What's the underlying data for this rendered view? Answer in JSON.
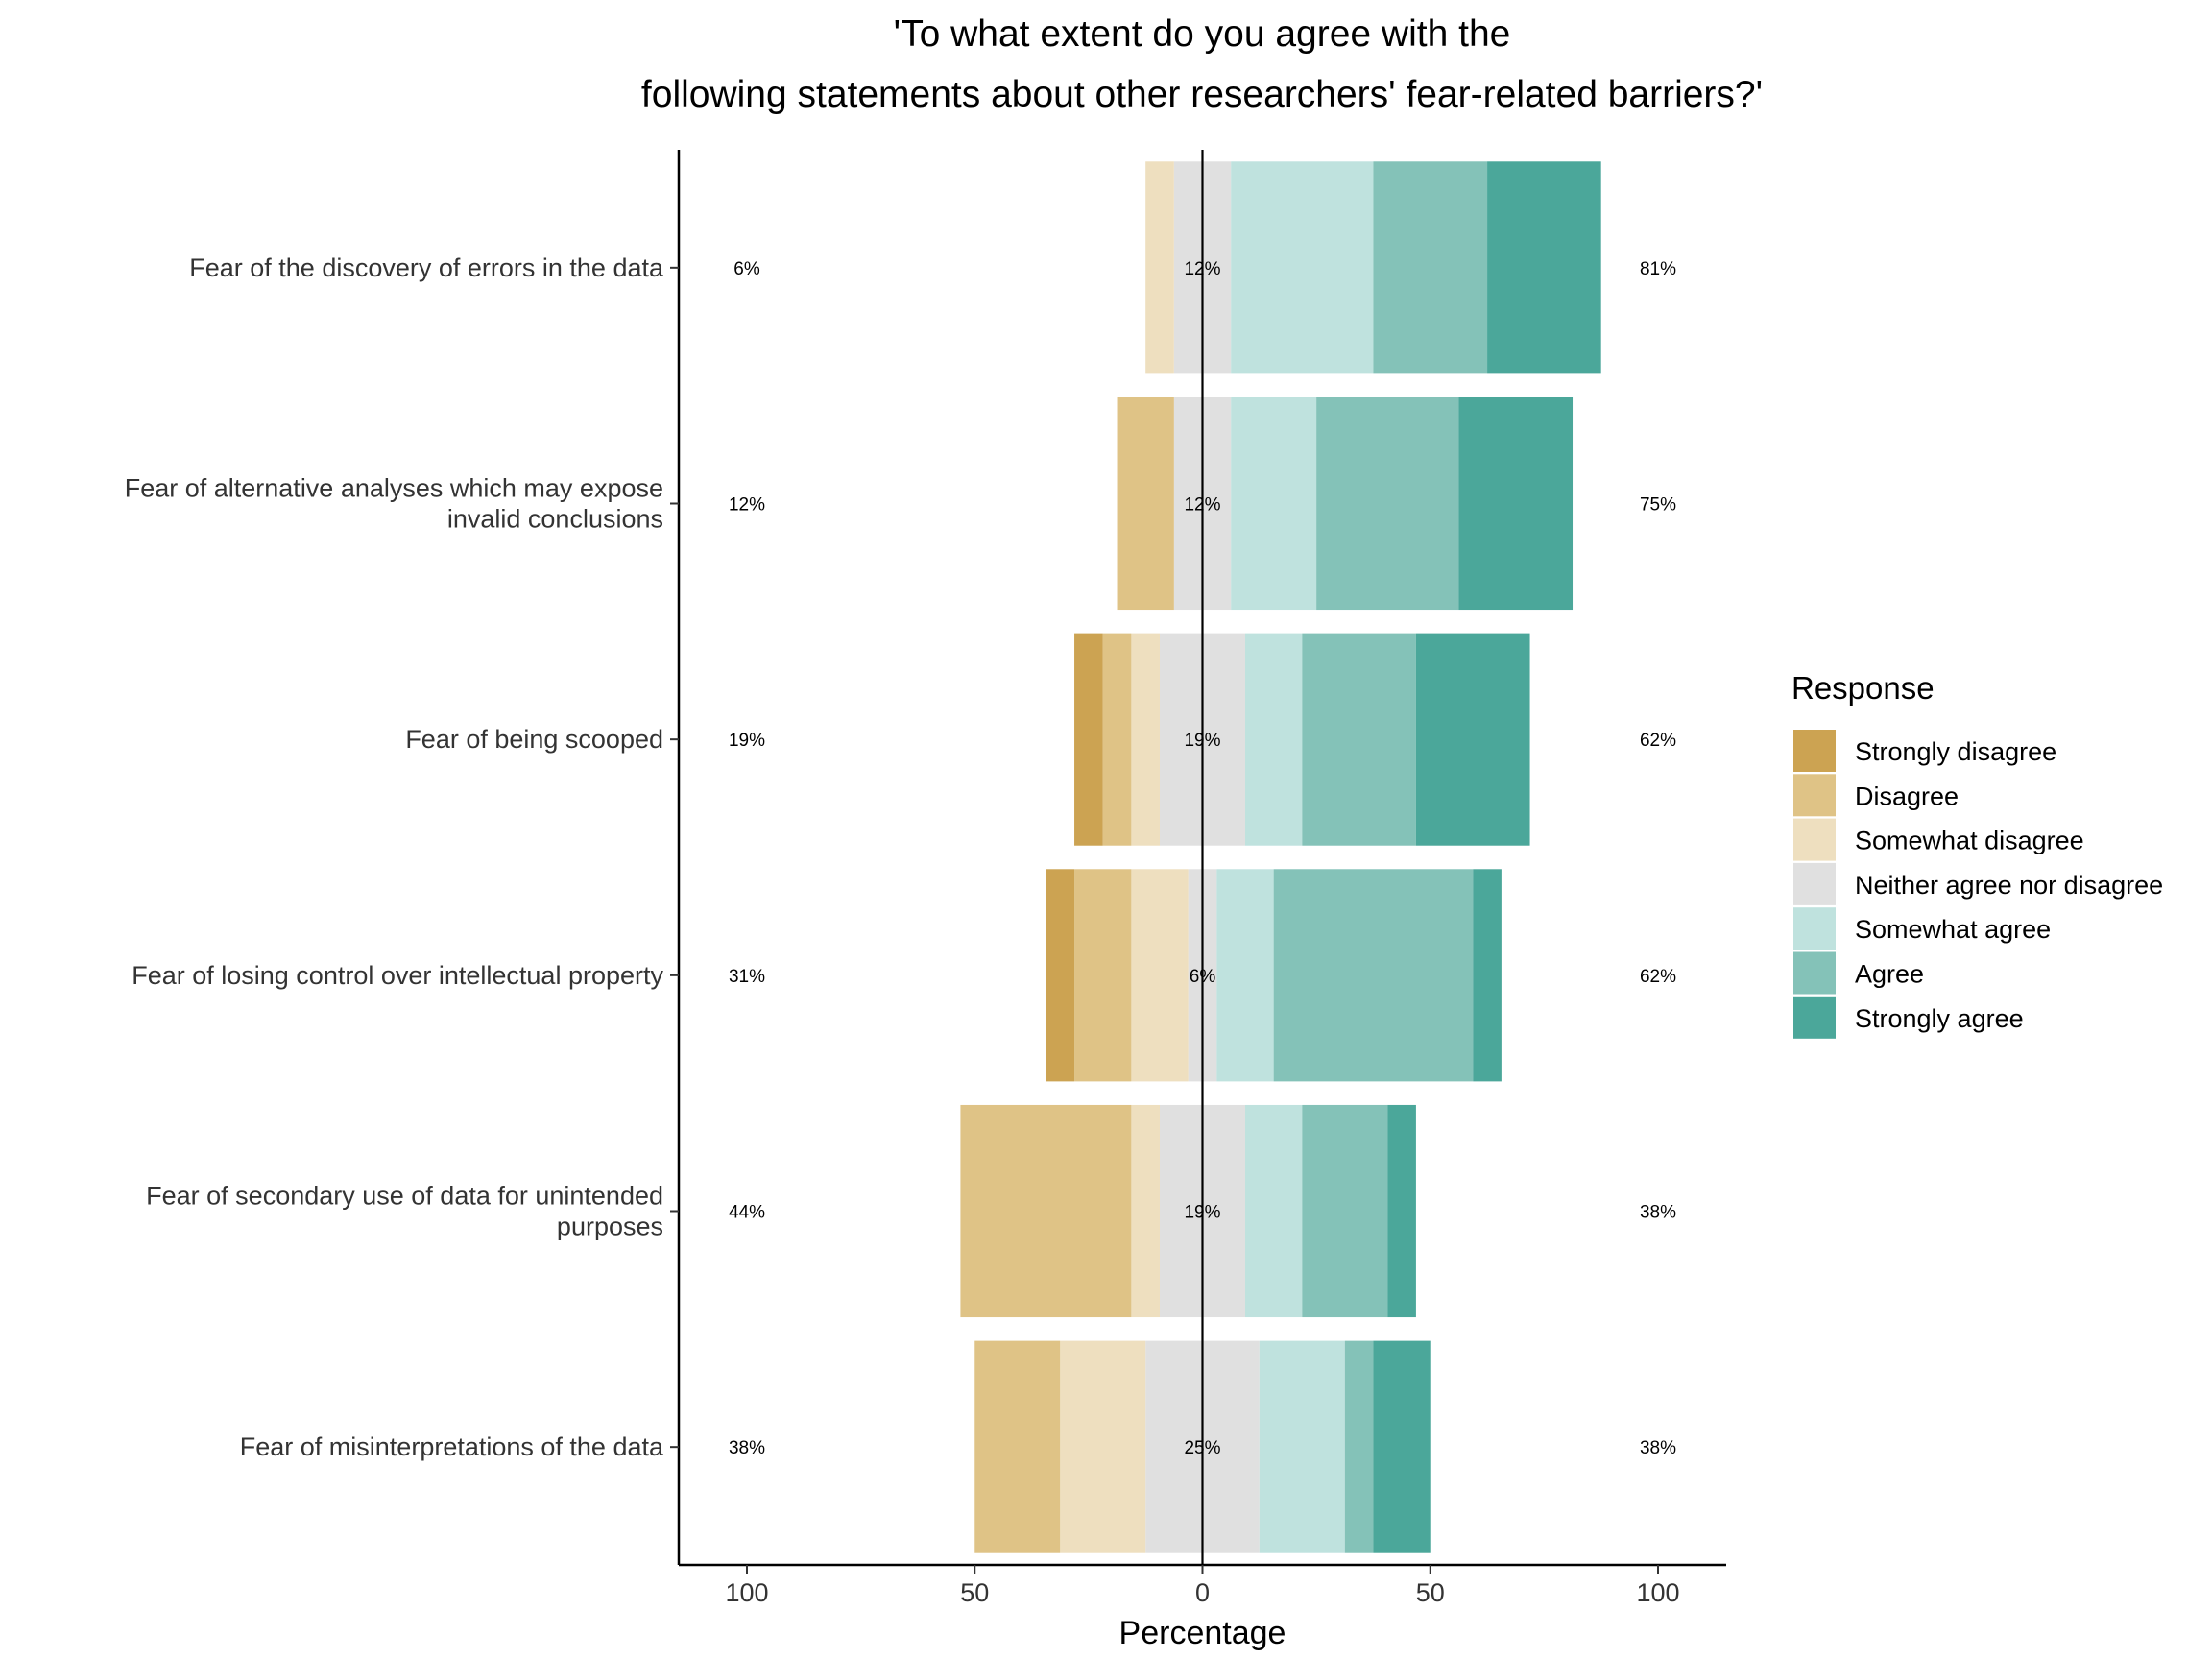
{
  "chart_data": {
    "type": "bar",
    "orientation": "horizontal",
    "layout": "diverging-stacked",
    "title": [
      "'To what extent do you agree with the",
      "following statements about other researchers' fear-related barriers?'"
    ],
    "xlabel": "Percentage",
    "ylabel": "",
    "xlim": [
      -115,
      115
    ],
    "xticks": [
      -100,
      -50,
      0,
      50,
      100
    ],
    "xtick_labels": [
      "100",
      "50",
      "0",
      "50",
      "100"
    ],
    "grid": false,
    "legend_position": "right",
    "legend_title": "Response",
    "categories": [
      [
        "Fear of the discovery of errors in the data"
      ],
      [
        "Fear of alternative analyses which may expose",
        "invalid conclusions"
      ],
      [
        "Fear of being scooped"
      ],
      [
        "Fear of losing control over intellectual property"
      ],
      [
        "Fear of secondary use of data for unintended",
        "purposes"
      ],
      [
        "Fear of misinterpretations of the data"
      ]
    ],
    "series": [
      {
        "name": "Strongly disagree",
        "color": "#CCA352",
        "values": [
          0,
          0,
          6.25,
          6.25,
          0,
          0
        ]
      },
      {
        "name": "Disagree",
        "color": "#DFC386",
        "values": [
          0,
          12.5,
          6.25,
          12.5,
          37.5,
          18.75
        ]
      },
      {
        "name": "Somewhat disagree",
        "color": "#EEDFBF",
        "values": [
          6.25,
          0,
          6.25,
          12.5,
          6.25,
          18.75
        ]
      },
      {
        "name": "Neither agree nor disagree",
        "color": "#E0E0E0",
        "values": [
          12.5,
          12.5,
          18.75,
          6.25,
          18.75,
          25
        ]
      },
      {
        "name": "Somewhat agree",
        "color": "#BFE2DE",
        "values": [
          31.25,
          18.75,
          12.5,
          12.5,
          12.5,
          18.75
        ]
      },
      {
        "name": "Agree",
        "color": "#84C2B8",
        "values": [
          25,
          31.25,
          25,
          43.75,
          18.75,
          6.25
        ]
      },
      {
        "name": "Strongly agree",
        "color": "#4BA79A",
        "values": [
          25,
          25,
          25,
          6.25,
          6.25,
          12.5
        ]
      }
    ],
    "labels_left": [
      "6%",
      "12%",
      "19%",
      "31%",
      "44%",
      "38%"
    ],
    "labels_center": [
      "12%",
      "12%",
      "19%",
      "6%",
      "19%",
      "25%"
    ],
    "labels_right": [
      "81%",
      "75%",
      "62%",
      "62%",
      "38%",
      "38%"
    ]
  }
}
